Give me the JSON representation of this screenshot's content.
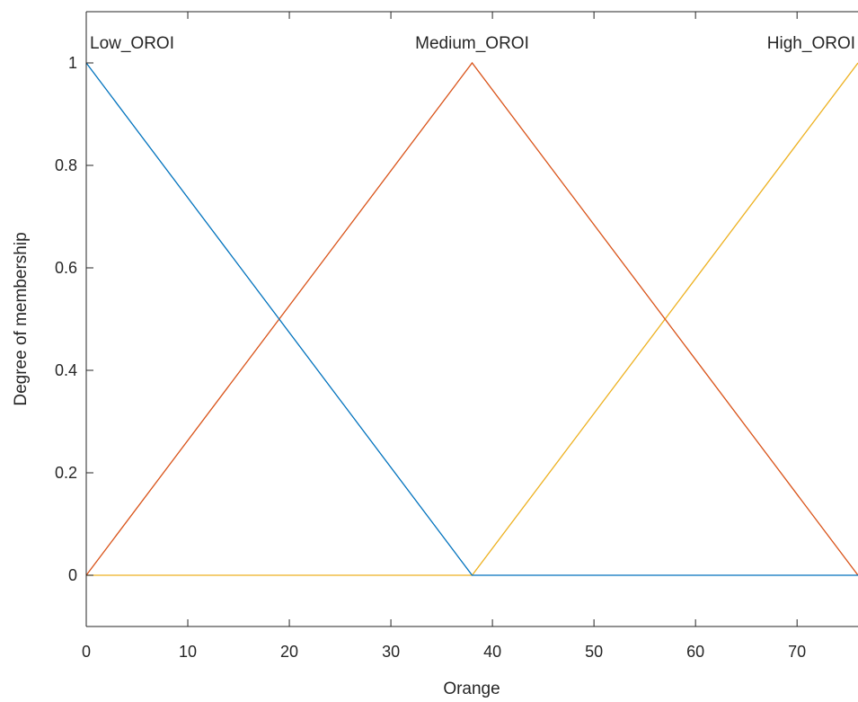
{
  "chart_data": {
    "type": "line",
    "xlabel": "Orange",
    "ylabel": "Degree of membership",
    "xlim": [
      0,
      76
    ],
    "ylim": [
      -0.1,
      1.1
    ],
    "xticks": [
      0,
      10,
      20,
      30,
      40,
      50,
      60,
      70
    ],
    "yticks": [
      0,
      0.2,
      0.4,
      0.6,
      0.8,
      1
    ],
    "xtick_labels": [
      "0",
      "10",
      "20",
      "30",
      "40",
      "50",
      "60",
      "70"
    ],
    "ytick_labels": [
      "0",
      "0.2",
      "0.4",
      "0.6",
      "0.8",
      "1"
    ],
    "grid": false,
    "series": [
      {
        "name": "Low_OROI",
        "color": "#0072BD",
        "x": [
          0,
          38,
          76
        ],
        "y": [
          1,
          0,
          0
        ]
      },
      {
        "name": "Medium_OROI",
        "color": "#D95319",
        "x": [
          0,
          38,
          76
        ],
        "y": [
          0,
          1,
          0
        ]
      },
      {
        "name": "High_OROI",
        "color": "#EDB120",
        "x": [
          0,
          38,
          76
        ],
        "y": [
          0,
          0,
          1
        ]
      }
    ]
  }
}
